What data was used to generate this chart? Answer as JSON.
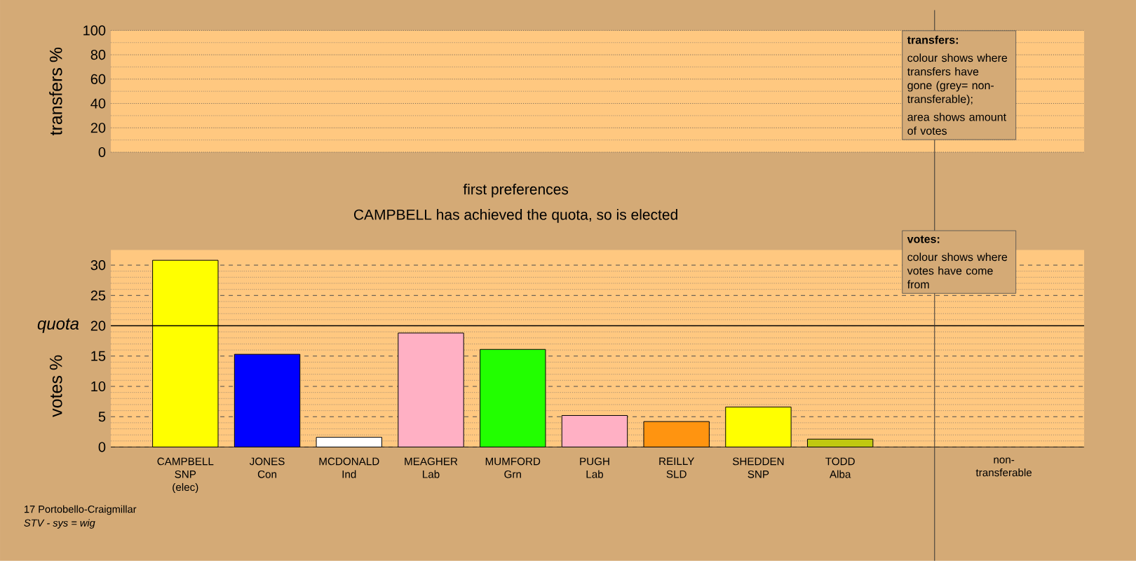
{
  "chart_data": [
    {
      "type": "bar",
      "ylabel": "transfers %",
      "categories": [
        null,
        null,
        null,
        null,
        null,
        null,
        null,
        null,
        null,
        null,
        null
      ],
      "values": [
        null,
        null,
        null,
        null,
        null,
        null,
        null,
        null,
        null,
        null,
        null
      ],
      "ylim": [
        0,
        100
      ],
      "yticks": [
        0,
        20,
        40,
        60,
        80,
        100
      ],
      "grid": "y",
      "tick_labels": "y",
      "annotations": [
        "transfers:",
        "colour shows where transfers have gone (grey= non-transferable);",
        "area shows amount of votes"
      ]
    },
    {
      "type": "bar",
      "title": "first preferences",
      "subtitle": "CAMPBELL has achieved the quota, so is elected",
      "ylabel": "votes %",
      "categories": [
        "CAMPBELL SNP (elec)",
        "JONES Con",
        "MCDONALD Ind",
        "MEAGHER Lab",
        "MUMFORD Grn",
        "PUGH Lab",
        "REILLY SLD",
        "SHEDDEN SNP",
        "TODD Alba",
        null,
        "non-transferable"
      ],
      "values": [
        30.8,
        15.3,
        1.6,
        18.8,
        16.1,
        5.2,
        4.2,
        6.6,
        1.3,
        null,
        null
      ],
      "colors": [
        "#ffff00",
        "#0000ff",
        "#ffffff",
        "#ffb0c4",
        "#22ff00",
        "#ffb0c4",
        "#ff9410",
        "#ffff00",
        "#c0c810",
        "#ffffff",
        "#ffffff"
      ],
      "ylim": [
        0,
        32.5
      ],
      "yticks": [
        0,
        5,
        10,
        15,
        20,
        25,
        30
      ],
      "grid": "y",
      "ref_lines": [
        {
          "axis": "y",
          "value": 20,
          "label": "quota"
        }
      ],
      "annotations": [
        "votes:",
        "colour shows where votes have come from",
        "17 Portobello-Craigmillar",
        "STV - sys = wig"
      ]
    }
  ]
}
